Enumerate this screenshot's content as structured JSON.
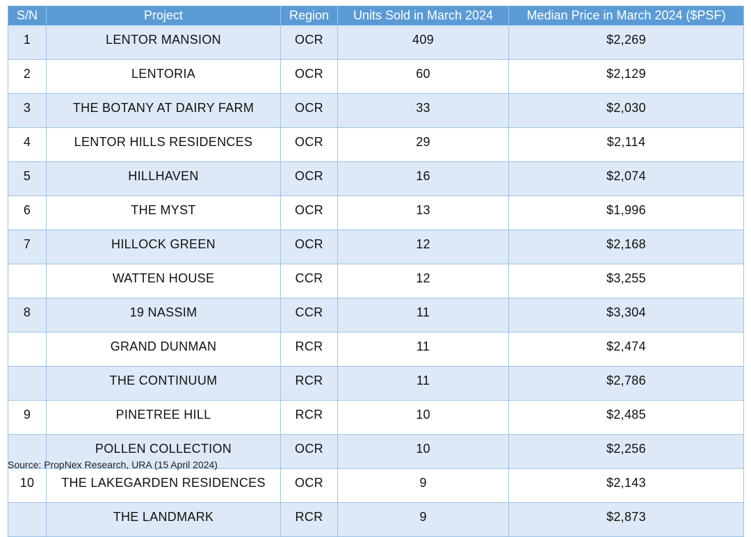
{
  "table": {
    "header": [
      "S/N",
      "Project",
      "Region",
      "Units Sold in March 2024",
      "Median Price in March 2024 ($PSF)"
    ],
    "rows": [
      [
        1,
        "LENTOR MANSION",
        "OCR",
        409,
        "$2,269"
      ],
      [
        2,
        "LENTORIA",
        "OCR",
        60,
        "$2,129"
      ],
      [
        3,
        "THE BOTANY AT DAIRY FARM",
        "OCR",
        33,
        "$2,030"
      ],
      [
        4,
        "LENTOR HILLS RESIDENCES",
        "OCR",
        29,
        "$2,114"
      ],
      [
        5,
        "HILLHAVEN",
        "OCR",
        16,
        "$2,074"
      ],
      [
        6,
        "THE MYST",
        "OCR",
        13,
        "$1,996"
      ],
      [
        7,
        "HILLOCK GREEN",
        "OCR",
        12,
        "$2,168"
      ],
      [
        null,
        "WATTEN HOUSE",
        "CCR",
        12,
        "$3,255"
      ],
      [
        8,
        "19 NASSIM",
        "CCR",
        11,
        "$3,304"
      ],
      [
        null,
        "GRAND DUNMAN",
        "RCR",
        11,
        "$2,474"
      ],
      [
        null,
        "THE CONTINUUM",
        "RCR",
        11,
        "$2,786"
      ],
      [
        9,
        "PINETREE HILL",
        "RCR",
        10,
        "$2,485"
      ],
      [
        null,
        "POLLEN COLLECTION",
        "OCR",
        10,
        "$2,256"
      ],
      [
        10,
        "THE LAKEGARDEN RESIDENCES",
        "OCR",
        9,
        "$2,143"
      ],
      [
        null,
        "THE LANDMARK",
        "RCR",
        9,
        "$2,873"
      ]
    ]
  },
  "source": "Source: PropNex Research, URA (15 April 2024)"
}
